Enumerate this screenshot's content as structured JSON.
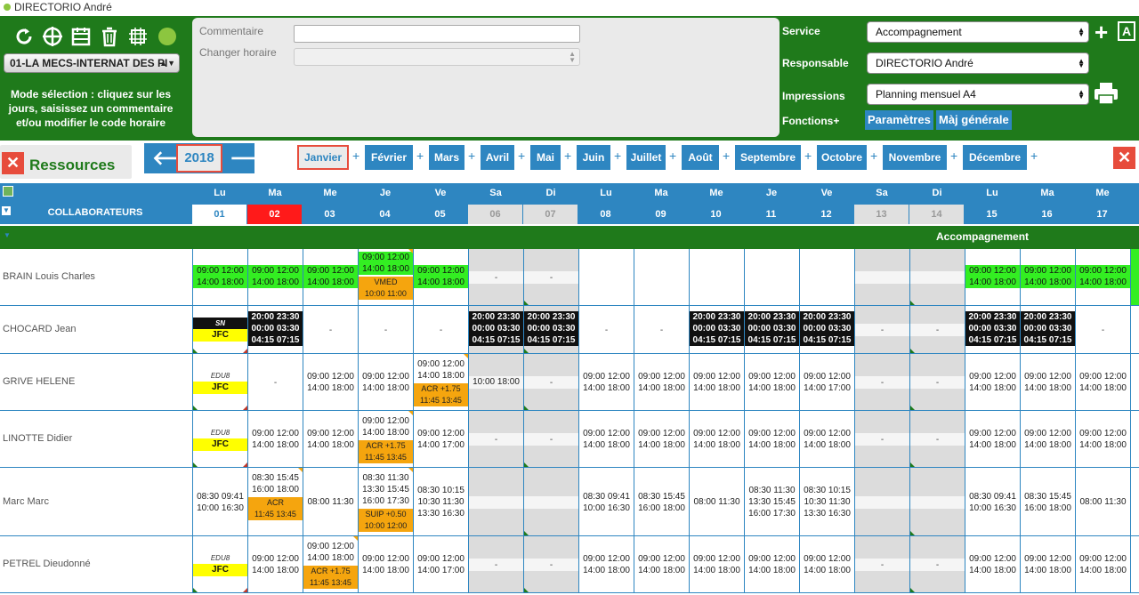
{
  "title": "DIRECTORIO André",
  "org_select": "01-LA MECS-INTERNAT DES PI",
  "mode_text": "Mode sélection : cliquez sur les jours, saisissez un commentaire et/ou modifier le code horaire",
  "comment_label": "Commentaire",
  "change_label": "Changer horaire",
  "service_label": "Service",
  "service_value": "Accompagnement",
  "responsable_label": "Responsable",
  "responsable_value": "DIRECTORIO André",
  "impressions_label": "Impressions",
  "impressions_value": "Planning mensuel A4",
  "fonctions_label": "Fonctions+",
  "btn_parametres": "Paramètres",
  "btn_maj": "Màj générale",
  "ressources": "Ressources",
  "year": "2018",
  "months": [
    "Janvier",
    "Février",
    "Mars",
    "Avril",
    "Mai",
    "Juin",
    "Juillet",
    "Août",
    "Septembre",
    "Octobre",
    "Novembre",
    "Décembre"
  ],
  "selected_month": "Janvier",
  "collab_label": "COLLABORATEURS",
  "section_label": "Accompagnement",
  "days": [
    {
      "d": "Lu",
      "n": "01",
      "t": "wk"
    },
    {
      "d": "Ma",
      "n": "02",
      "t": "today"
    },
    {
      "d": "Me",
      "n": "03",
      "t": "wd"
    },
    {
      "d": "Je",
      "n": "04",
      "t": "wd"
    },
    {
      "d": "Ve",
      "n": "05",
      "t": "wd"
    },
    {
      "d": "Sa",
      "n": "06",
      "t": "we"
    },
    {
      "d": "Di",
      "n": "07",
      "t": "we"
    },
    {
      "d": "Lu",
      "n": "08",
      "t": "wd"
    },
    {
      "d": "Ma",
      "n": "09",
      "t": "wd"
    },
    {
      "d": "Me",
      "n": "10",
      "t": "wd"
    },
    {
      "d": "Je",
      "n": "11",
      "t": "wd"
    },
    {
      "d": "Ve",
      "n": "12",
      "t": "wd"
    },
    {
      "d": "Sa",
      "n": "13",
      "t": "we"
    },
    {
      "d": "Di",
      "n": "14",
      "t": "we"
    },
    {
      "d": "Lu",
      "n": "15",
      "t": "wd"
    },
    {
      "d": "Ma",
      "n": "16",
      "t": "wd"
    },
    {
      "d": "Me",
      "n": "17",
      "t": "wd"
    }
  ],
  "people": [
    {
      "name": "BRAIN Louis Charles",
      "cells": [
        {
          "g": [
            "09:00 12:00",
            "14:00 18:00"
          ]
        },
        {
          "g": [
            "09:00 12:00",
            "14:00 18:00"
          ]
        },
        {
          "g": [
            "09:00 12:00",
            "14:00 18:00"
          ]
        },
        {
          "g": [
            "09:00 12:00",
            "14:00 18:00"
          ],
          "o": [
            "VMED",
            "10:00 11:00"
          ]
        },
        {
          "g": [
            "09:00 12:00",
            "14:00 18:00"
          ]
        },
        {
          "we": true,
          "t": [
            "-"
          ]
        },
        {
          "we": true,
          "t": [
            "-"
          ]
        },
        {
          "e": 1
        },
        {
          "e": 1
        },
        {
          "e": 1
        },
        {
          "e": 1
        },
        {
          "e": 1
        },
        {
          "we": true
        },
        {
          "we": true
        },
        {
          "g": [
            "09:00 12:00",
            "14:00 18:00"
          ]
        },
        {
          "g": [
            "09:00 12:00",
            "14:00 18:00"
          ]
        },
        {
          "g": [
            "09:00 12:00",
            "14:00 18:00"
          ]
        }
      ]
    },
    {
      "name": "CHOCARD Jean",
      "cells": [
        {
          "sn": "SN",
          "y": "JFC"
        },
        {
          "k": [
            "20:00 23:30",
            "00:00 03:30",
            "04:15 07:15"
          ]
        },
        {
          "t": [
            "-"
          ]
        },
        {
          "t": [
            "-"
          ]
        },
        {
          "t": [
            "-"
          ]
        },
        {
          "we": true,
          "k": [
            "20:00 23:30",
            "00:00 03:30",
            "04:15 07:15"
          ]
        },
        {
          "we": true,
          "k": [
            "20:00 23:30",
            "00:00 03:30",
            "04:15 07:15"
          ]
        },
        {
          "t": [
            "-"
          ]
        },
        {
          "t": [
            "-"
          ]
        },
        {
          "k": [
            "20:00 23:30",
            "00:00 03:30",
            "04:15 07:15"
          ]
        },
        {
          "k": [
            "20:00 23:30",
            "00:00 03:30",
            "04:15 07:15"
          ]
        },
        {
          "k": [
            "20:00 23:30",
            "00:00 03:30",
            "04:15 07:15"
          ]
        },
        {
          "we": true,
          "t": [
            "-"
          ]
        },
        {
          "we": true,
          "t": [
            "-"
          ]
        },
        {
          "k": [
            "20:00 23:30",
            "00:00 03:30",
            "04:15 07:15"
          ]
        },
        {
          "k": [
            "20:00 23:30",
            "00:00 03:30",
            "04:15 07:15"
          ]
        },
        {
          "t": [
            "-"
          ]
        }
      ]
    },
    {
      "name": "GRIVE HELENE",
      "cells": [
        {
          "edu": "EDU8",
          "y": "JFC"
        },
        {
          "t": [
            "-"
          ]
        },
        {
          "t": [
            "09:00 12:00",
            "14:00 18:00"
          ]
        },
        {
          "t": [
            "09:00 12:00",
            "14:00 18:00"
          ]
        },
        {
          "t": [
            "09:00 12:00",
            "14:00 18:00"
          ],
          "o": [
            "ACR +1.75",
            "11:45 13:45"
          ]
        },
        {
          "we": true,
          "t": [
            "10:00 18:00"
          ]
        },
        {
          "we": true,
          "t": [
            "-"
          ]
        },
        {
          "t": [
            "09:00 12:00",
            "14:00 18:00"
          ]
        },
        {
          "t": [
            "09:00 12:00",
            "14:00 18:00"
          ]
        },
        {
          "t": [
            "09:00 12:00",
            "14:00 18:00"
          ]
        },
        {
          "t": [
            "09:00 12:00",
            "14:00 18:00"
          ]
        },
        {
          "t": [
            "09:00 12:00",
            "14:00 17:00"
          ]
        },
        {
          "we": true,
          "t": [
            "-"
          ]
        },
        {
          "we": true,
          "t": [
            "-"
          ]
        },
        {
          "t": [
            "09:00 12:00",
            "14:00 18:00"
          ]
        },
        {
          "t": [
            "09:00 12:00",
            "14:00 18:00"
          ]
        },
        {
          "t": [
            "09:00 12:00",
            "14:00 18:00"
          ]
        }
      ]
    },
    {
      "name": "LINOTTE Didier",
      "cells": [
        {
          "edu": "EDU8",
          "y": "JFC"
        },
        {
          "t": [
            "09:00 12:00",
            "14:00 18:00"
          ]
        },
        {
          "t": [
            "09:00 12:00",
            "14:00 18:00"
          ]
        },
        {
          "t": [
            "09:00 12:00",
            "14:00 18:00"
          ],
          "o": [
            "ACR +1.75",
            "11:45 13:45"
          ]
        },
        {
          "t": [
            "09:00 12:00",
            "14:00 17:00"
          ]
        },
        {
          "we": true,
          "t": [
            "-"
          ]
        },
        {
          "we": true,
          "t": [
            "-"
          ]
        },
        {
          "t": [
            "09:00 12:00",
            "14:00 18:00"
          ]
        },
        {
          "t": [
            "09:00 12:00",
            "14:00 18:00"
          ]
        },
        {
          "t": [
            "09:00 12:00",
            "14:00 18:00"
          ]
        },
        {
          "t": [
            "09:00 12:00",
            "14:00 18:00"
          ]
        },
        {
          "t": [
            "09:00 12:00",
            "14:00 18:00"
          ]
        },
        {
          "we": true,
          "t": [
            "-"
          ]
        },
        {
          "we": true,
          "t": [
            "-"
          ]
        },
        {
          "t": [
            "09:00 12:00",
            "14:00 18:00"
          ]
        },
        {
          "t": [
            "09:00 12:00",
            "14:00 18:00"
          ]
        },
        {
          "t": [
            "09:00 12:00",
            "14:00 18:00"
          ]
        }
      ]
    },
    {
      "name": "Marc Marc",
      "cells": [
        {
          "t": [
            "08:30 09:41",
            "10:00 16:30"
          ]
        },
        {
          "t": [
            "08:30 15:45",
            "16:00 18:00"
          ],
          "o": [
            "ACR",
            "11:45 13:45"
          ]
        },
        {
          "t": [
            "08:00 11:30"
          ]
        },
        {
          "t": [
            "08:30 11:30",
            "13:30 15:45",
            "16:00 17:30"
          ],
          "o": [
            "SUIP +0.50",
            "10:00 12:00"
          ]
        },
        {
          "t": [
            "08:30 10:15",
            "10:30 11:30",
            "13:30 16:30"
          ]
        },
        {
          "we": true
        },
        {
          "we": true
        },
        {
          "t": [
            "08:30 09:41",
            "10:00 16:30"
          ]
        },
        {
          "t": [
            "08:30 15:45",
            "16:00 18:00"
          ]
        },
        {
          "t": [
            "08:00 11:30"
          ]
        },
        {
          "t": [
            "08:30 11:30",
            "13:30 15:45",
            "16:00 17:30"
          ]
        },
        {
          "t": [
            "08:30 10:15",
            "10:30 11:30",
            "13:30 16:30"
          ]
        },
        {
          "we": true
        },
        {
          "we": true
        },
        {
          "t": [
            "08:30 09:41",
            "10:00 16:30"
          ]
        },
        {
          "t": [
            "08:30 15:45",
            "16:00 18:00"
          ]
        },
        {
          "t": [
            "08:00 11:30"
          ]
        }
      ]
    },
    {
      "name": "PETREL Dieudonné",
      "cells": [
        {
          "edu": "EDU8",
          "y": "JFC"
        },
        {
          "t": [
            "09:00 12:00",
            "14:00 18:00"
          ]
        },
        {
          "t": [
            "09:00 12:00",
            "14:00 18:00"
          ],
          "o": [
            "ACR +1.75",
            "11:45 13:45"
          ]
        },
        {
          "t": [
            "09:00 12:00",
            "14:00 18:00"
          ]
        },
        {
          "t": [
            "09:00 12:00",
            "14:00 17:00"
          ]
        },
        {
          "we": true,
          "t": [
            "-"
          ]
        },
        {
          "we": true,
          "t": [
            "-"
          ]
        },
        {
          "t": [
            "09:00 12:00",
            "14:00 18:00"
          ]
        },
        {
          "t": [
            "09:00 12:00",
            "14:00 18:00"
          ]
        },
        {
          "t": [
            "09:00 12:00",
            "14:00 18:00"
          ]
        },
        {
          "t": [
            "09:00 12:00",
            "14:00 18:00"
          ]
        },
        {
          "t": [
            "09:00 12:00",
            "14:00 18:00"
          ]
        },
        {
          "we": true,
          "t": [
            "-"
          ]
        },
        {
          "we": true,
          "t": [
            "-"
          ]
        },
        {
          "t": [
            "09:00 12:00",
            "14:00 18:00"
          ]
        },
        {
          "t": [
            "09:00 12:00",
            "14:00 18:00"
          ]
        },
        {
          "t": [
            "09:00 12:00",
            "14:00 18:00"
          ]
        }
      ]
    }
  ]
}
